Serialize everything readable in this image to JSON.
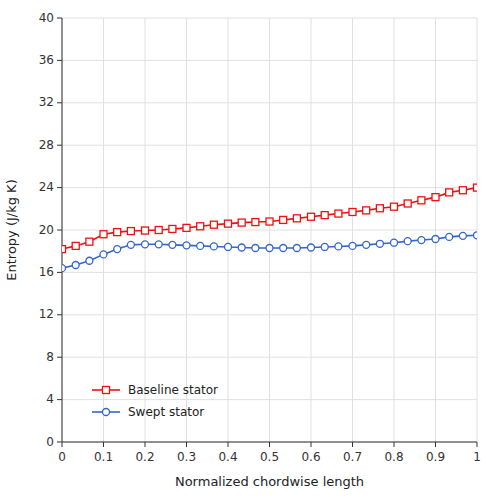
{
  "chart_data": {
    "type": "line",
    "xlabel": "Normalized chordwise length",
    "ylabel": "Entropy (J/kg K)",
    "x": [
      0.0,
      0.033,
      0.066,
      0.1,
      0.133,
      0.166,
      0.2,
      0.233,
      0.266,
      0.3,
      0.333,
      0.366,
      0.4,
      0.433,
      0.466,
      0.5,
      0.533,
      0.566,
      0.6,
      0.633,
      0.666,
      0.7,
      0.733,
      0.766,
      0.8,
      0.833,
      0.866,
      0.9,
      0.933,
      0.966,
      1.0
    ],
    "series": [
      {
        "name": "Baseline stator",
        "color": "#ee1111",
        "marker": "square",
        "values": [
          18.2,
          18.5,
          18.9,
          19.6,
          19.8,
          19.9,
          19.95,
          20.0,
          20.1,
          20.2,
          20.35,
          20.5,
          20.6,
          20.7,
          20.75,
          20.8,
          20.95,
          21.1,
          21.25,
          21.4,
          21.55,
          21.7,
          21.85,
          22.05,
          22.2,
          22.5,
          22.8,
          23.1,
          23.55,
          23.75,
          24.0
        ]
      },
      {
        "name": "Swept stator",
        "color": "#3366cc",
        "marker": "circle",
        "values": [
          16.4,
          16.7,
          17.1,
          17.7,
          18.2,
          18.6,
          18.65,
          18.65,
          18.6,
          18.55,
          18.5,
          18.45,
          18.4,
          18.35,
          18.3,
          18.3,
          18.3,
          18.3,
          18.35,
          18.4,
          18.45,
          18.5,
          18.6,
          18.7,
          18.8,
          18.95,
          19.05,
          19.15,
          19.35,
          19.45,
          19.5
        ]
      }
    ],
    "xlim": [
      0,
      1.0
    ],
    "ylim": [
      0,
      40
    ],
    "xticks": [
      0,
      0.1,
      0.2,
      0.3,
      0.4,
      0.5,
      0.6,
      0.7,
      0.8,
      0.9,
      1.0
    ],
    "yticks": [
      0,
      4,
      8,
      12,
      16,
      20,
      24,
      28,
      32,
      36,
      40
    ],
    "grid": true,
    "legend": "lower left"
  }
}
